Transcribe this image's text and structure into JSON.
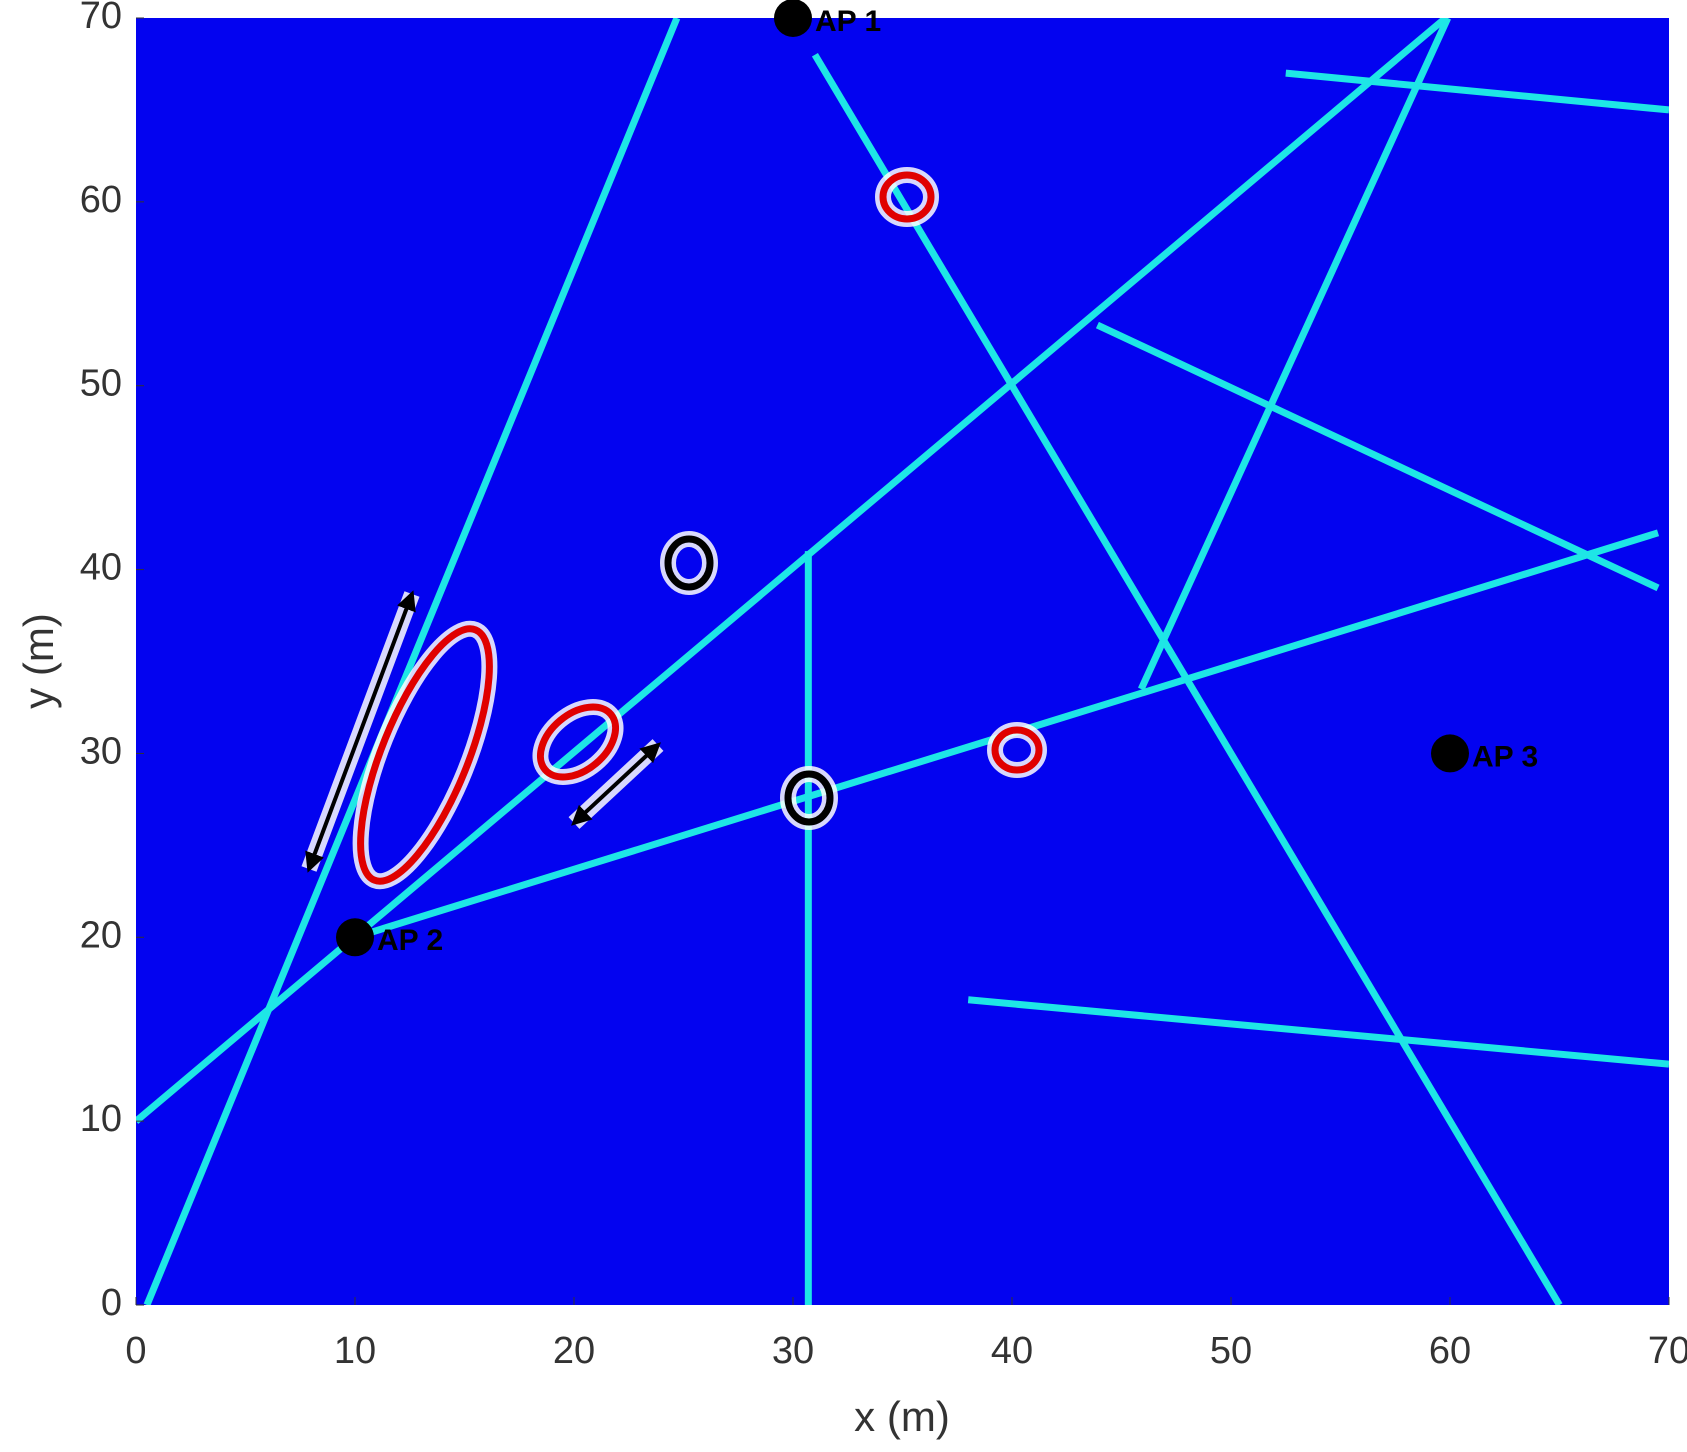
{
  "chart_data": {
    "type": "scatter",
    "xlabel": "x (m)",
    "ylabel": "y (m)",
    "xlim": [
      0,
      70
    ],
    "ylim": [
      0,
      70
    ],
    "xticks": [
      0,
      10,
      20,
      30,
      40,
      50,
      60,
      70
    ],
    "yticks": [
      0,
      10,
      20,
      30,
      40,
      50,
      60,
      70
    ],
    "background": "#0303f0",
    "line_color": "#1ee6e6",
    "lines": [
      {
        "x": [
          0.5,
          24.7
        ],
        "y": [
          0,
          70
        ]
      },
      {
        "x": [
          0,
          59.8
        ],
        "y": [
          10,
          70
        ]
      },
      {
        "x": [
          31,
          65
        ],
        "y": [
          68,
          0
        ]
      },
      {
        "x": [
          10,
          69.5
        ],
        "y": [
          20,
          42
        ]
      },
      {
        "x": [
          45.9,
          59.9
        ],
        "y": [
          33.5,
          70
        ]
      },
      {
        "x": [
          30.7,
          30.7
        ],
        "y": [
          0,
          41
        ]
      },
      {
        "x": [
          43.9,
          69.5
        ],
        "y": [
          53.3,
          39
        ]
      },
      {
        "x": [
          52.5,
          70
        ],
        "y": [
          67,
          65
        ]
      },
      {
        "x": [
          38,
          70
        ],
        "y": [
          16.6,
          13.1
        ]
      }
    ],
    "point_color": "#000000",
    "points": [
      {
        "label": "AP 1",
        "x": 30,
        "y": 70
      },
      {
        "label": "AP 2",
        "x": 10,
        "y": 20
      },
      {
        "label": "AP 3",
        "x": 60,
        "y": 30
      }
    ]
  }
}
